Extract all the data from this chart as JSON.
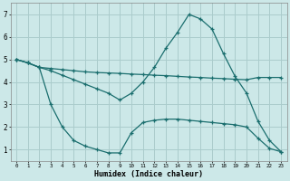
{
  "xlabel": "Humidex (Indice chaleur)",
  "bg_color": "#cce8e8",
  "grid_color": "#aacccc",
  "line_color": "#1a6e6e",
  "xlim": [
    -0.5,
    23.5
  ],
  "ylim": [
    0.5,
    7.5
  ],
  "xticks": [
    0,
    1,
    2,
    3,
    4,
    5,
    6,
    7,
    8,
    9,
    10,
    11,
    12,
    13,
    14,
    15,
    16,
    17,
    18,
    19,
    20,
    21,
    22,
    23
  ],
  "yticks": [
    1,
    2,
    3,
    4,
    5,
    6,
    7
  ],
  "line1_x": [
    0,
    1,
    2,
    3,
    4,
    5,
    6,
    7,
    8,
    9,
    10,
    11,
    12,
    13,
    14,
    15,
    16,
    17,
    18,
    19,
    20,
    21,
    22,
    23
  ],
  "line1_y": [
    5.0,
    4.85,
    4.65,
    4.6,
    4.55,
    4.5,
    4.45,
    4.42,
    4.4,
    4.38,
    4.35,
    4.33,
    4.3,
    4.28,
    4.25,
    4.22,
    4.2,
    4.17,
    4.15,
    4.12,
    4.1,
    4.2,
    4.2,
    4.2
  ],
  "line2_x": [
    0,
    1,
    2,
    3,
    4,
    5,
    6,
    7,
    8,
    9,
    10,
    11,
    12,
    13,
    14,
    15,
    16,
    17,
    18,
    19,
    20,
    21,
    22,
    23
  ],
  "line2_y": [
    5.0,
    4.85,
    4.65,
    4.5,
    4.3,
    4.1,
    3.9,
    3.7,
    3.5,
    3.2,
    3.5,
    4.0,
    4.65,
    5.5,
    6.2,
    7.0,
    6.8,
    6.35,
    5.25,
    4.25,
    3.5,
    2.25,
    1.4,
    0.9
  ],
  "line3_x": [
    0,
    1,
    2,
    3,
    4,
    5,
    6,
    7,
    8,
    9,
    10,
    11,
    12,
    13,
    14,
    15,
    16,
    17,
    18,
    19,
    20,
    21,
    22,
    23
  ],
  "line3_y": [
    5.0,
    4.85,
    4.65,
    3.0,
    2.0,
    1.4,
    1.15,
    1.0,
    0.85,
    0.85,
    1.75,
    2.2,
    2.3,
    2.35,
    2.35,
    2.3,
    2.25,
    2.2,
    2.15,
    2.1,
    2.0,
    1.5,
    1.05,
    0.9
  ]
}
